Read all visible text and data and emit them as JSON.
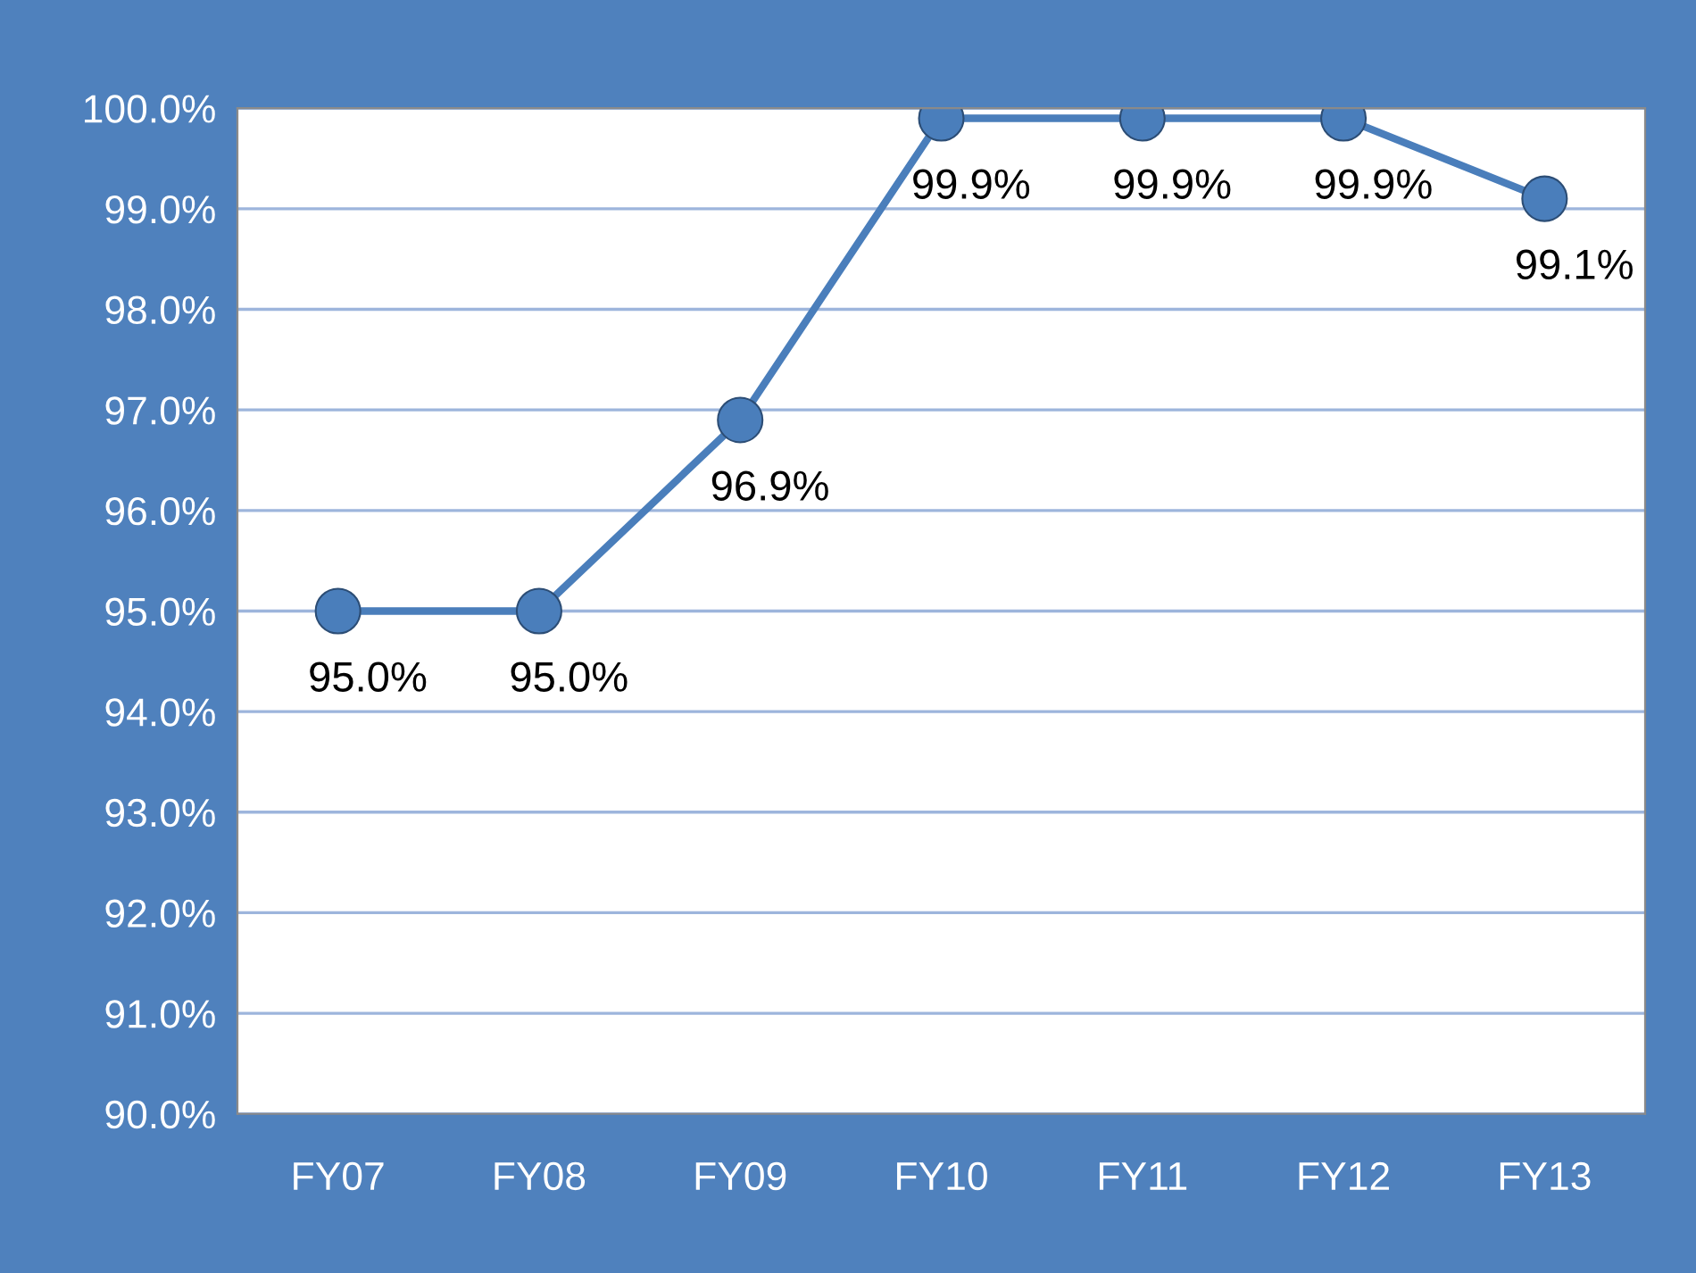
{
  "chart_data": {
    "type": "line",
    "categories": [
      "FY07",
      "FY08",
      "FY09",
      "FY10",
      "FY11",
      "FY12",
      "FY13"
    ],
    "series": [
      {
        "color": "#4a7ebb",
        "values": [
          95.0,
          95.0,
          96.9,
          99.9,
          99.9,
          99.9,
          99.1
        ],
        "value_labels": [
          "95.0%",
          "95.0%",
          "96.9%",
          "99.9%",
          "99.9%",
          "99.9%",
          "99.1%"
        ]
      }
    ],
    "ylim": [
      90,
      100
    ],
    "yticks": [
      {
        "value": 90,
        "label": "90.0%"
      },
      {
        "value": 91,
        "label": "91.0%"
      },
      {
        "value": 92,
        "label": "92.0%"
      },
      {
        "value": 93,
        "label": "93.0%"
      },
      {
        "value": 94,
        "label": "94.0%"
      },
      {
        "value": 95,
        "label": "95.0%"
      },
      {
        "value": 96,
        "label": "96.0%"
      },
      {
        "value": 97,
        "label": "97.0%"
      },
      {
        "value": 98,
        "label": "98.0%"
      },
      {
        "value": 99,
        "label": "99.0%"
      },
      {
        "value": 100,
        "label": "100.0%"
      }
    ],
    "grid": "y",
    "marker": "circle",
    "line_style": "solid"
  }
}
